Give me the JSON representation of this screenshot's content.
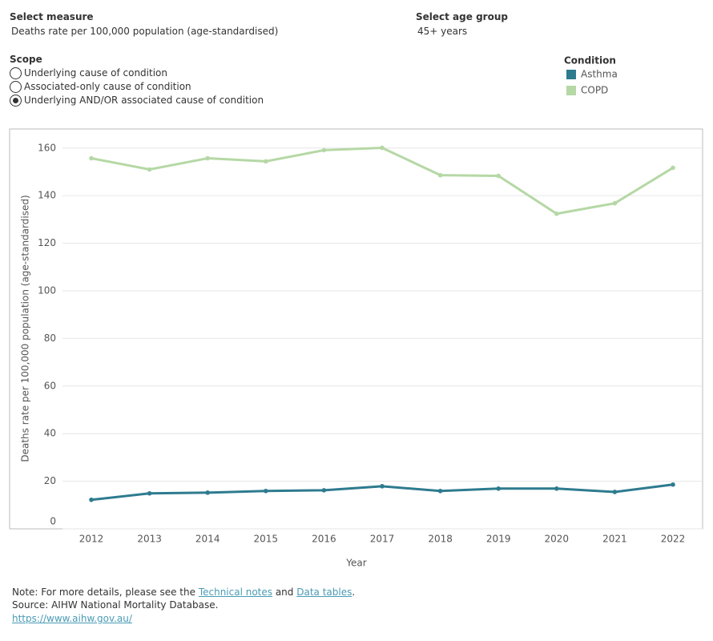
{
  "controls": {
    "measure": {
      "label": "Select measure",
      "value": "Deaths rate per 100,000 population (age-standardised)"
    },
    "age_group": {
      "label": "Select age group",
      "value": "45+ years"
    },
    "scope": {
      "label": "Scope",
      "options": [
        "Underlying cause of condition",
        "Associated-only cause of condition",
        "Underlying AND/OR associated cause of condition"
      ],
      "selected": 2
    }
  },
  "chart_data": {
    "type": "line",
    "x_label": "Year",
    "y_label": "Deaths rate per 100,000 population (age-standardised)",
    "legend_title": "Condition",
    "categories": [
      "2012",
      "2013",
      "2014",
      "2015",
      "2016",
      "2017",
      "2018",
      "2019",
      "2020",
      "2021",
      "2022"
    ],
    "series": [
      {
        "name": "Asthma",
        "color": "#2e7b8f",
        "values": [
          12.2,
          14.9,
          15.2,
          15.9,
          16.2,
          17.9,
          15.9,
          16.9,
          16.9,
          15.5,
          18.6
        ]
      },
      {
        "name": "COPD",
        "color": "#b5d8a5",
        "values": [
          155.7,
          151.0,
          155.7,
          154.4,
          159.1,
          160.1,
          148.6,
          148.3,
          132.4,
          136.8,
          151.7
        ]
      }
    ],
    "ylim": [
      0,
      168
    ],
    "yticks": [
      0,
      20,
      40,
      60,
      80,
      100,
      120,
      140,
      160
    ],
    "grid": true
  },
  "footer": {
    "note_prefix": "Note: For more details, please see the ",
    "link1": "Technical notes",
    "note_mid": " and ",
    "link2": "Data tables",
    "note_end": ".",
    "source": "Source: AIHW National Mortality Database.",
    "url": "https://www.aihw.gov.au/"
  }
}
